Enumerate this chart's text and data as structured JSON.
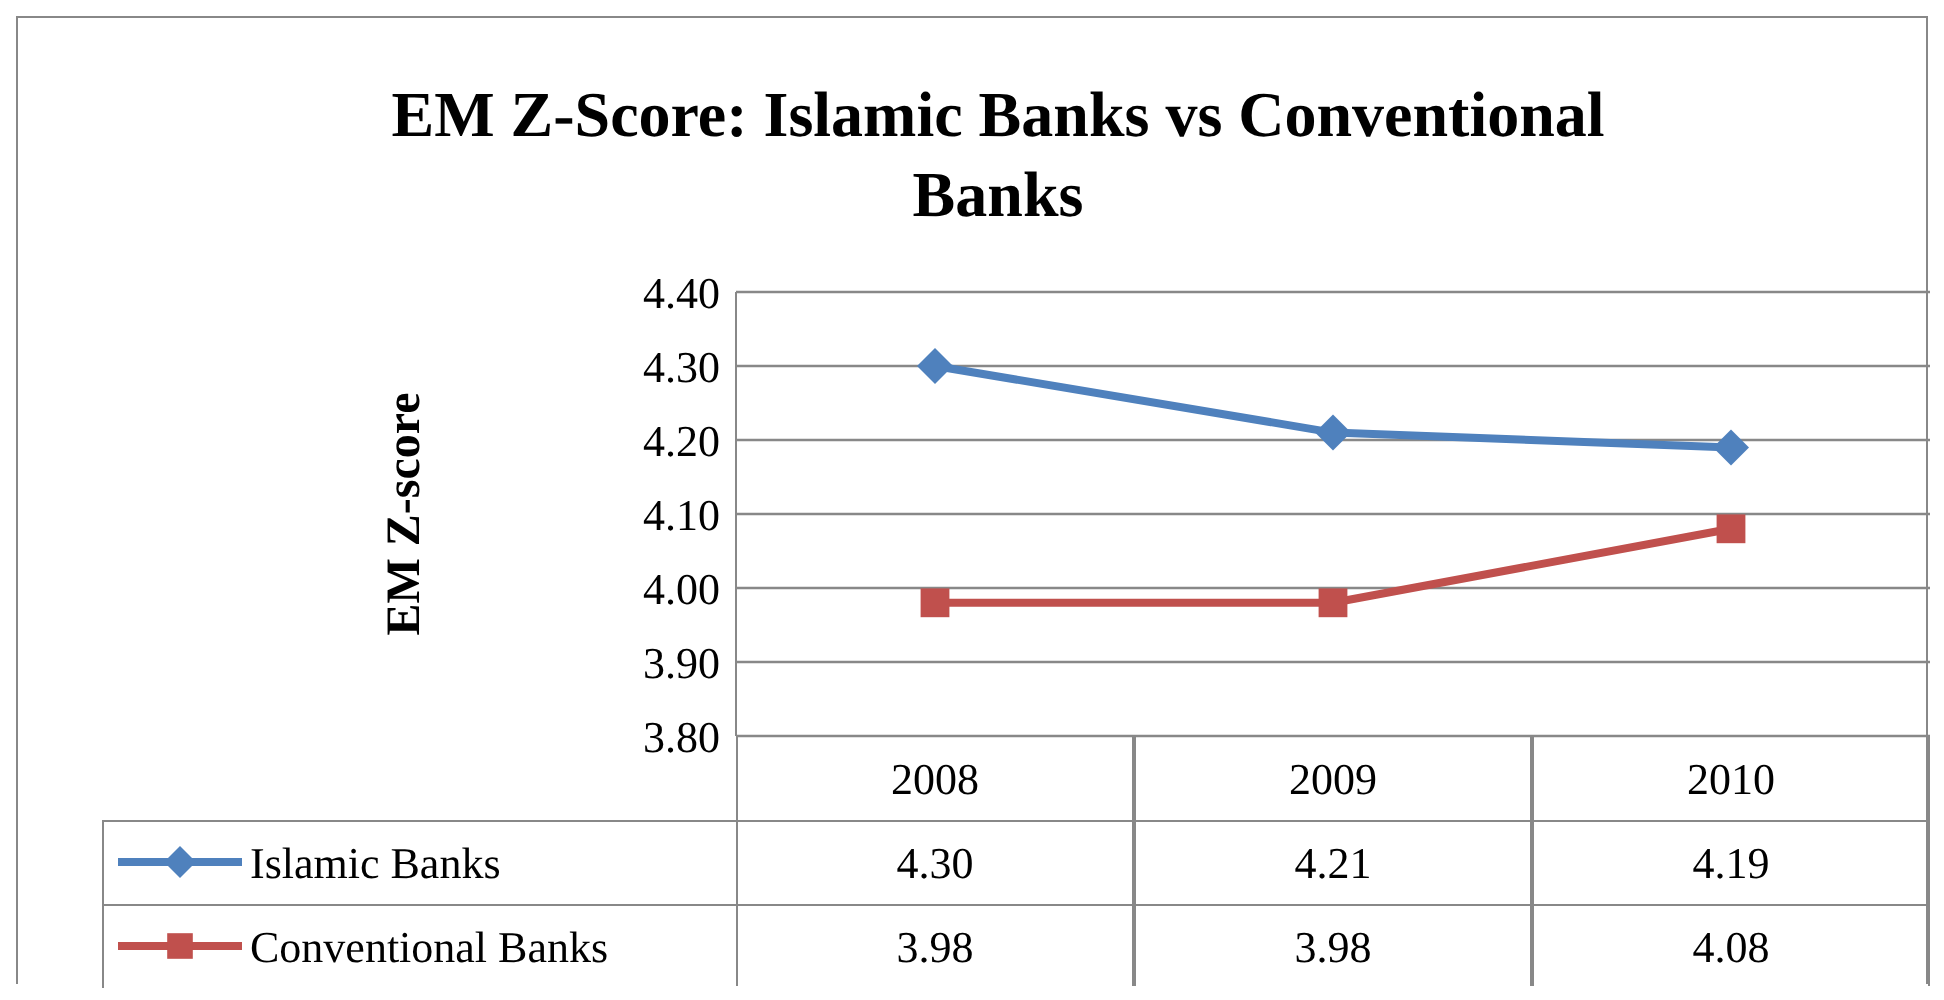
{
  "chart_data": {
    "type": "line",
    "title": "EM Z-Score: Islamic Banks vs Conventional Banks",
    "ylabel": "EM Z-score",
    "categories": [
      "2008",
      "2009",
      "2010"
    ],
    "series": [
      {
        "name": "Islamic Banks",
        "color": "#4f81bd",
        "marker": "diamond",
        "values": [
          4.3,
          4.21,
          4.19
        ],
        "value_labels": [
          "4.30",
          "4.21",
          "4.19"
        ]
      },
      {
        "name": "Conventional Banks",
        "color": "#c0504d",
        "marker": "square",
        "values": [
          3.98,
          3.98,
          4.08
        ],
        "value_labels": [
          "3.98",
          "3.98",
          "4.08"
        ]
      }
    ],
    "ylim": [
      3.8,
      4.4
    ],
    "yticks": [
      {
        "value": 3.8,
        "label": "3.80"
      },
      {
        "value": 3.9,
        "label": "3.90"
      },
      {
        "value": 4.0,
        "label": "4.00"
      },
      {
        "value": 4.1,
        "label": "4.10"
      },
      {
        "value": 4.2,
        "label": "4.20"
      },
      {
        "value": 4.3,
        "label": "4.30"
      },
      {
        "value": 4.4,
        "label": "4.40"
      }
    ],
    "grid": "y",
    "legend": "bottom left",
    "line_style": "solid"
  }
}
